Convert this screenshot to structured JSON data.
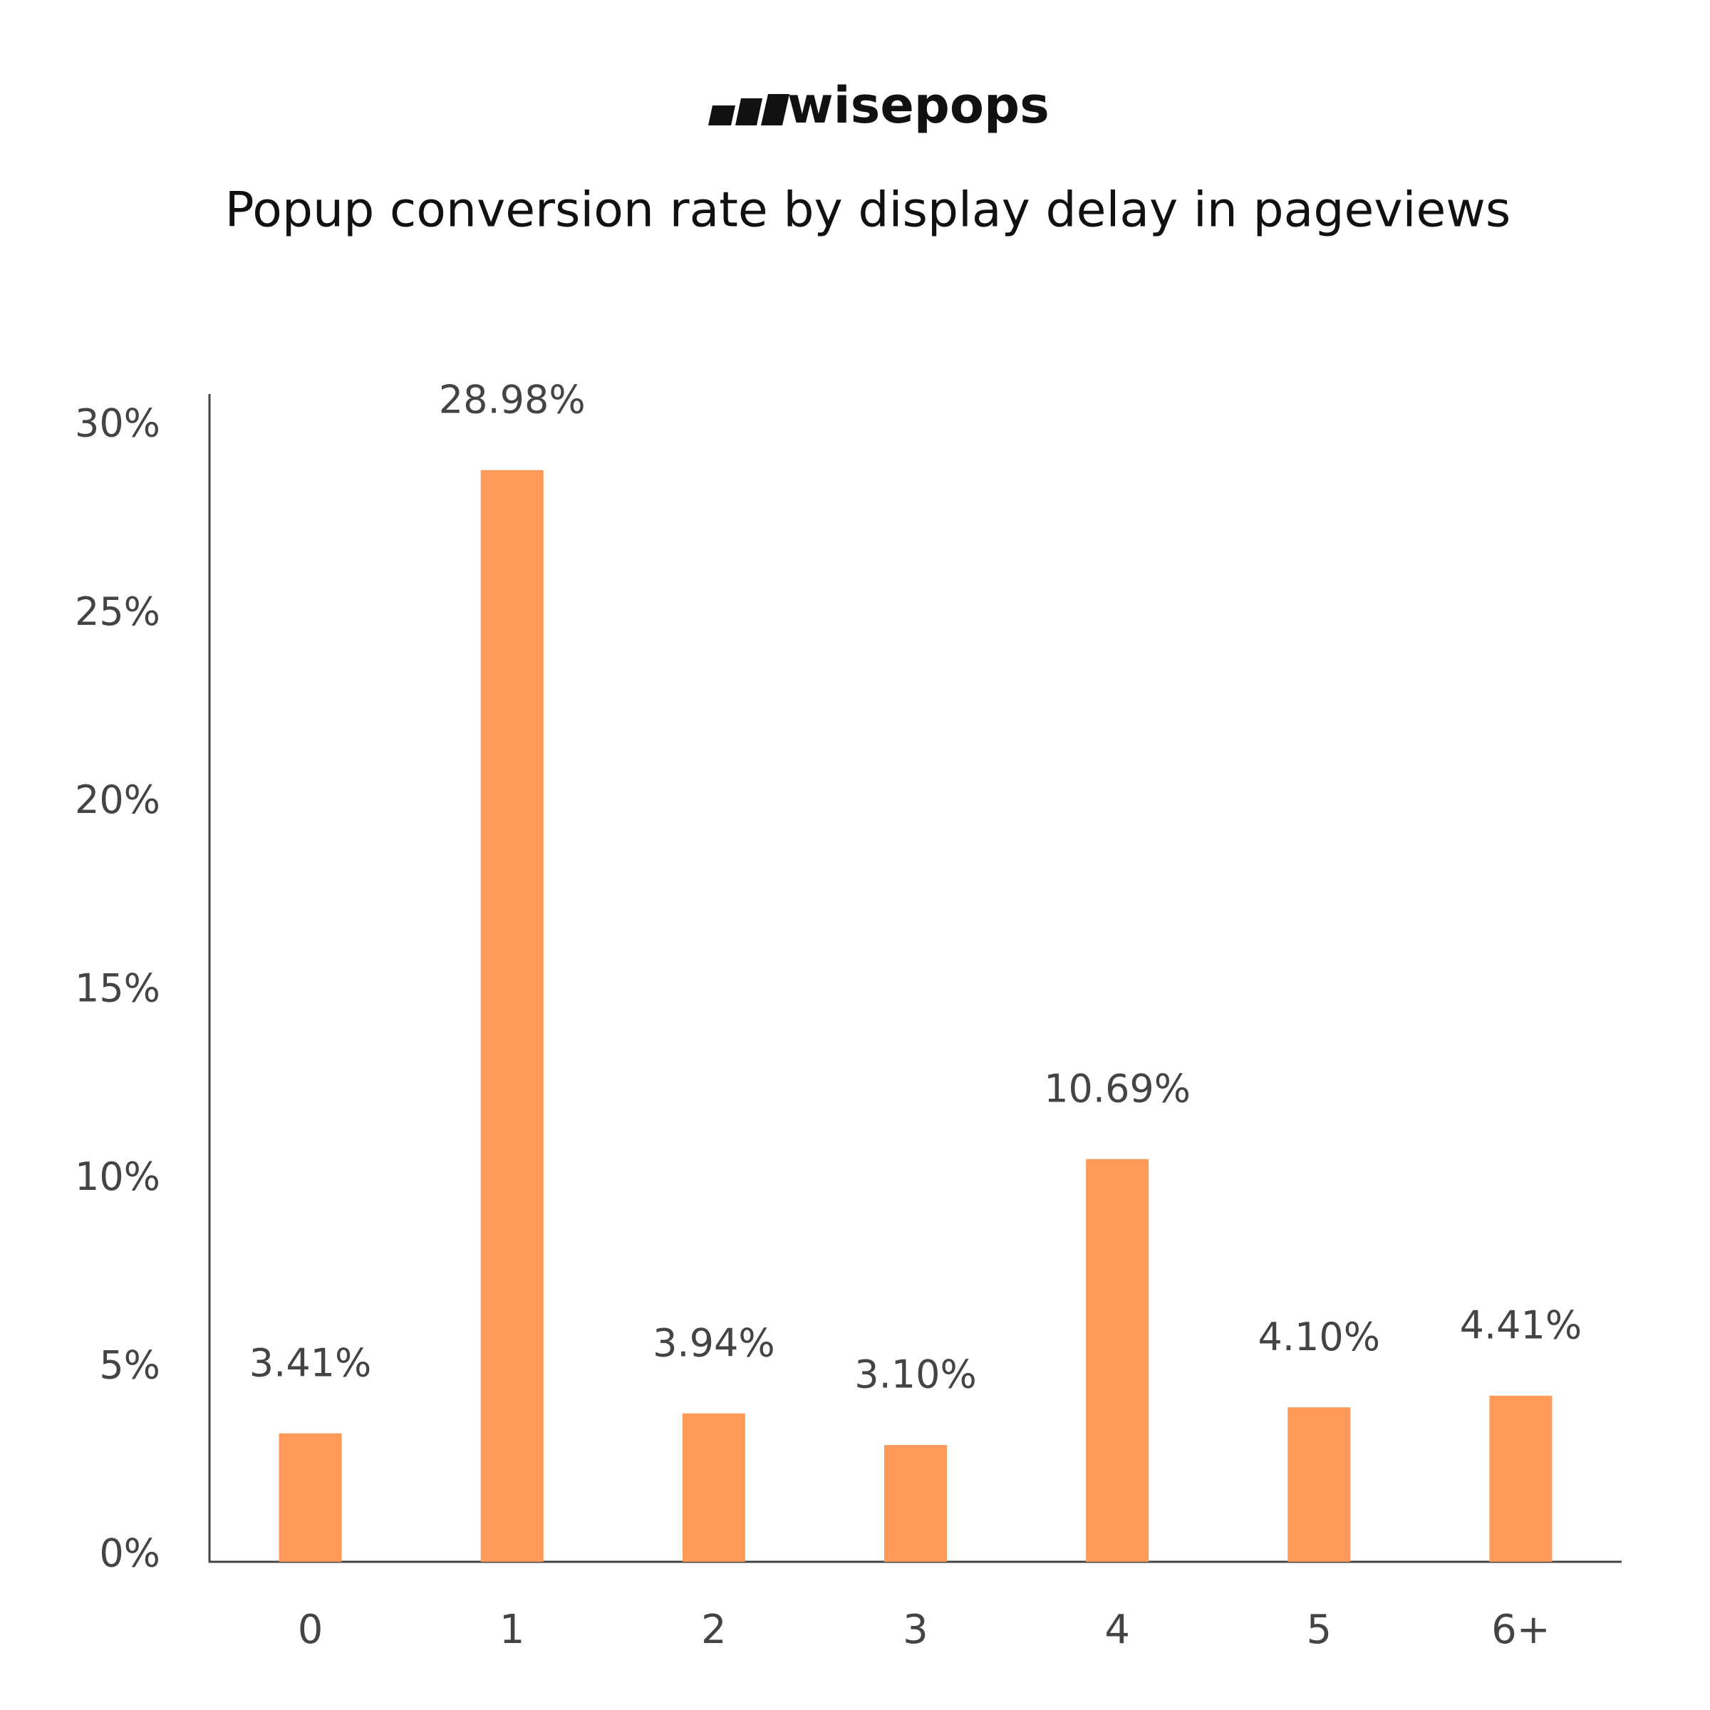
{
  "brand": "wisepops",
  "chart_data": {
    "type": "bar",
    "title": "Popup conversion rate by display delay in pageviews",
    "categories": [
      "0",
      "1",
      "2",
      "3",
      "4",
      "5",
      "6+"
    ],
    "values": [
      3.41,
      28.98,
      3.94,
      3.1,
      10.69,
      4.1,
      4.41
    ],
    "value_labels": [
      "3.41%",
      "28.98%",
      "3.94%",
      "3.10%",
      "10.69%",
      "4.10%",
      "4.41%"
    ],
    "color": "#fd9a5a",
    "ylim": [
      0,
      31
    ],
    "yticks": [
      {
        "value": 0,
        "label": "0%"
      },
      {
        "value": 5,
        "label": "5%"
      },
      {
        "value": 10,
        "label": "10%"
      },
      {
        "value": 15,
        "label": "15%"
      },
      {
        "value": 20,
        "label": "20%"
      },
      {
        "value": 25,
        "label": "25%"
      },
      {
        "value": 30,
        "label": "30%"
      }
    ],
    "grid": false
  }
}
